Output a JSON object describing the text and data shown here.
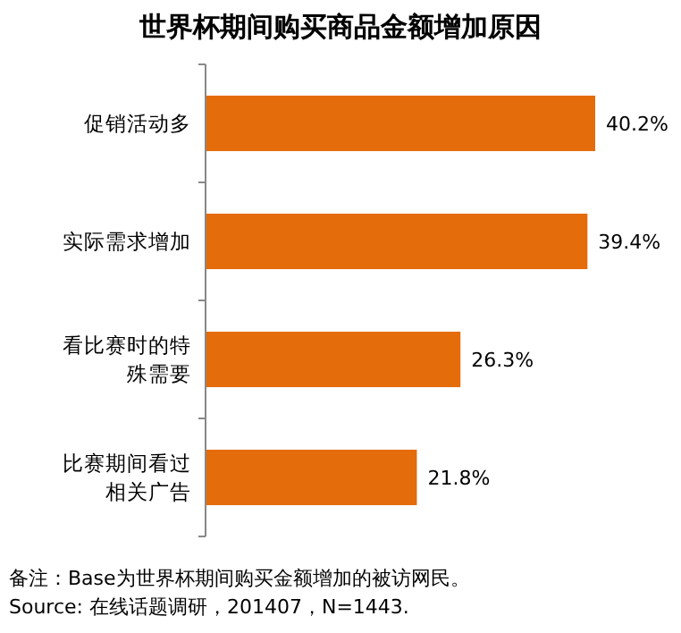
{
  "chart_data": {
    "type": "bar",
    "orientation": "horizontal",
    "title": "世界杯期间购买商品金额增加原因",
    "categories": [
      "促销活动多",
      "实际需求增加",
      "看比赛时的特殊需要",
      "比赛期间看过相关广告"
    ],
    "values": [
      40.2,
      39.4,
      26.3,
      21.8
    ],
    "color": "#e46c0a",
    "value_labels": [
      "40.2%",
      "39.4%",
      "26.3%",
      "21.8%"
    ],
    "annotations": [
      "备注：Base为世界杯期间购买金额增加的被访网民。",
      "Source: 在线话题调研，201407，N=1443."
    ]
  }
}
